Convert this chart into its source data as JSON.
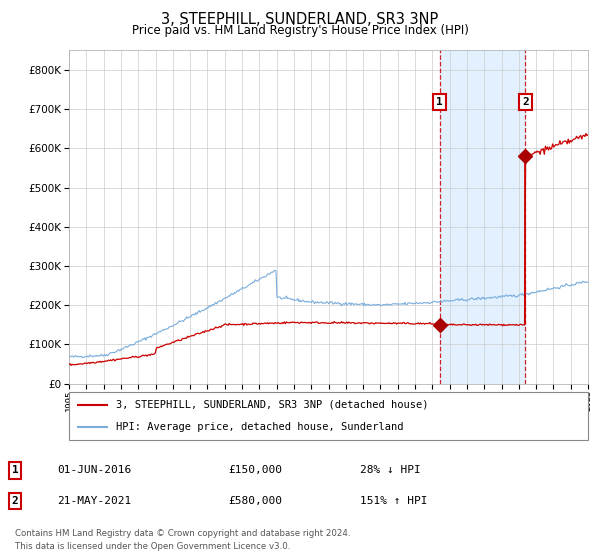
{
  "title": "3, STEEPHILL, SUNDERLAND, SR3 3NP",
  "subtitle": "Price paid vs. HM Land Registry's House Price Index (HPI)",
  "legend_line1": "3, STEEPHILL, SUNDERLAND, SR3 3NP (detached house)",
  "legend_line2": "HPI: Average price, detached house, Sunderland",
  "annotation1_label": "1",
  "annotation1_date": "01-JUN-2016",
  "annotation1_price": 150000,
  "annotation1_pct": "28% ↓ HPI",
  "annotation2_label": "2",
  "annotation2_date": "21-MAY-2021",
  "annotation2_price": 580000,
  "annotation2_pct": "151% ↑ HPI",
  "footnote1": "Contains HM Land Registry data © Crown copyright and database right 2024.",
  "footnote2": "This data is licensed under the Open Government Licence v3.0.",
  "hpi_color": "#7aaddc",
  "price_color": "#cc0000",
  "dot_color": "#aa0000",
  "background_color": "#ffffff",
  "grid_color": "#cccccc",
  "shade_color": "#ddeeff",
  "ylim": [
    0,
    850000
  ],
  "year_start": 1995,
  "year_end": 2025,
  "sale1_year": 2016.42,
  "sale2_year": 2021.38
}
